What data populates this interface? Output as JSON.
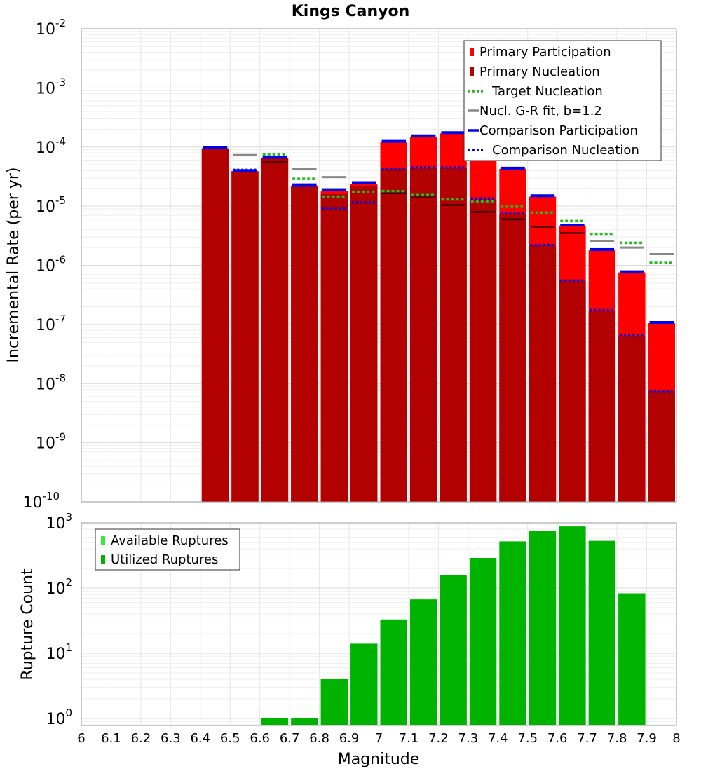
{
  "chart_data": [
    {
      "type": "bar",
      "title": "Kings Canyon",
      "xlabel": "",
      "ylabel": "Incremental Rate (per yr)",
      "yscale": "log",
      "ylim": [
        1e-10,
        0.01
      ],
      "xlim": [
        6.0,
        8.0
      ],
      "bin_width": 0.1,
      "grid": true,
      "legend_position": "top-right",
      "ytick_labels": [
        {
          "base": "10",
          "exp": "-10"
        },
        {
          "base": "10",
          "exp": "-9"
        },
        {
          "base": "10",
          "exp": "-8"
        },
        {
          "base": "10",
          "exp": "-7"
        },
        {
          "base": "10",
          "exp": "-6"
        },
        {
          "base": "10",
          "exp": "-5"
        },
        {
          "base": "10",
          "exp": "-4"
        },
        {
          "base": "10",
          "exp": "-3"
        },
        {
          "base": "10",
          "exp": "-2"
        }
      ],
      "legend": [
        {
          "label": "Primary Participation",
          "kind": "bar",
          "color": "#ff0000"
        },
        {
          "label": "Primary Nucleation",
          "kind": "bar",
          "color": "#b30000"
        },
        {
          "label": "Target Nucleation",
          "kind": "dotted",
          "color": "#22bb22"
        },
        {
          "label": "Nucl. G-R fit, b=1.2",
          "kind": "solid",
          "color": "#888888"
        },
        {
          "label": "Comparison Participation",
          "kind": "solid",
          "color": "#0000ee"
        },
        {
          "label": "Comparison Nucleation",
          "kind": "dotted",
          "color": "#0000ee"
        }
      ],
      "x": [
        6.45,
        6.55,
        6.65,
        6.75,
        6.85,
        6.95,
        7.05,
        7.15,
        7.25,
        7.35,
        7.45,
        7.55,
        7.65,
        7.75,
        7.85,
        7.95
      ],
      "series": [
        {
          "name": "Primary Participation",
          "color": "#ff0000",
          "values": [
            9.5e-05,
            3.9e-05,
            6.5e-05,
            2.2e-05,
            1.8e-05,
            2.4e-05,
            0.00012,
            0.00015,
            0.00017,
            6e-05,
            4.3e-05,
            1.45e-05,
            4.7e-06,
            1.8e-06,
            7.6e-07,
            1.05e-07
          ]
        },
        {
          "name": "Primary Nucleation",
          "color": "#b30000",
          "values": [
            9.5e-05,
            3.9e-05,
            6.5e-05,
            2.2e-05,
            1.6e-05,
            2.2e-05,
            4.3e-05,
            4.5e-05,
            4.5e-05,
            1.3e-05,
            7.5e-06,
            2.2e-06,
            5.5e-07,
            1.7e-07,
            6.5e-08,
            7.5e-09
          ]
        },
        {
          "name": "Target Nucleation",
          "color": "#22bb22",
          "values": [
            null,
            null,
            7.4e-05,
            2.9e-05,
            1.45e-05,
            1.75e-05,
            1.8e-05,
            1.55e-05,
            1.3e-05,
            1.2e-05,
            9.8e-06,
            7.8e-06,
            5.6e-06,
            3.4e-06,
            2.4e-06,
            1.1e-06
          ]
        },
        {
          "name": "Nucl. G-R fit, b=1.2",
          "color": "#888888",
          "values": [
            null,
            7.3e-05,
            null,
            4.2e-05,
            3.1e-05,
            null,
            null,
            null,
            null,
            null,
            null,
            null,
            null,
            2.6e-06,
            2e-06,
            1.55e-06
          ]
        },
        {
          "name": "Comparison Participation",
          "color": "#0000ee",
          "values": [
            9.8e-05,
            4e-05,
            6.7e-05,
            2.3e-05,
            1.9e-05,
            2.5e-05,
            0.000125,
            0.000155,
            0.000175,
            6.2e-05,
            4.4e-05,
            1.5e-05,
            4.8e-06,
            1.85e-06,
            7.8e-07,
            1.08e-07
          ]
        },
        {
          "name": "Comparison Nucleation",
          "color": "#0000ee",
          "values": [
            9.6e-05,
            4.1e-05,
            6.7e-05,
            2.2e-05,
            9e-06,
            1.15e-05,
            4.2e-05,
            4.5e-05,
            4.5e-05,
            1.35e-05,
            7.6e-06,
            2.2e-06,
            5.5e-07,
            1.75e-07,
            6.5e-08,
            7.5e-09
          ]
        },
        {
          "name": "",
          "color": "#3a0000",
          "values": [
            null,
            null,
            5.5e-05,
            null,
            null,
            null,
            1.65e-05,
            1.4e-05,
            1.05e-05,
            8e-06,
            6e-06,
            4.5e-06,
            3.5e-06,
            null,
            null,
            null
          ]
        }
      ]
    },
    {
      "type": "bar",
      "title": "",
      "xlabel": "Magnitude",
      "ylabel": "Rupture Count",
      "yscale": "log",
      "ylim": [
        0.78,
        1000
      ],
      "xlim": [
        6.0,
        8.0
      ],
      "bin_width": 0.1,
      "grid": true,
      "legend_position": "top-left",
      "ytick_labels": [
        {
          "base": "10",
          "exp": "0"
        },
        {
          "base": "10",
          "exp": "1"
        },
        {
          "base": "10",
          "exp": "2"
        },
        {
          "base": "10",
          "exp": "3"
        }
      ],
      "xtick_labels": [
        "6",
        "6.1",
        "6.2",
        "6.3",
        "6.4",
        "6.5",
        "6.6",
        "6.7",
        "6.8",
        "6.9",
        "7",
        "7.1",
        "7.2",
        "7.3",
        "7.4",
        "7.5",
        "7.6",
        "7.7",
        "7.8",
        "7.9",
        "8"
      ],
      "legend": [
        {
          "label": "Available Ruptures",
          "kind": "bar",
          "color": "#33ee33"
        },
        {
          "label": "Utilized Ruptures",
          "kind": "bar",
          "color": "#00b300"
        }
      ],
      "x": [
        6.65,
        6.75,
        6.85,
        6.95,
        7.05,
        7.15,
        7.25,
        7.35,
        7.45,
        7.55,
        7.65,
        7.75,
        7.85
      ],
      "series": [
        {
          "name": "Utilized Ruptures",
          "color": "#00b300",
          "values": [
            1,
            1,
            4,
            14,
            33,
            67,
            160,
            290,
            520,
            750,
            880,
            530,
            83
          ]
        }
      ]
    }
  ]
}
